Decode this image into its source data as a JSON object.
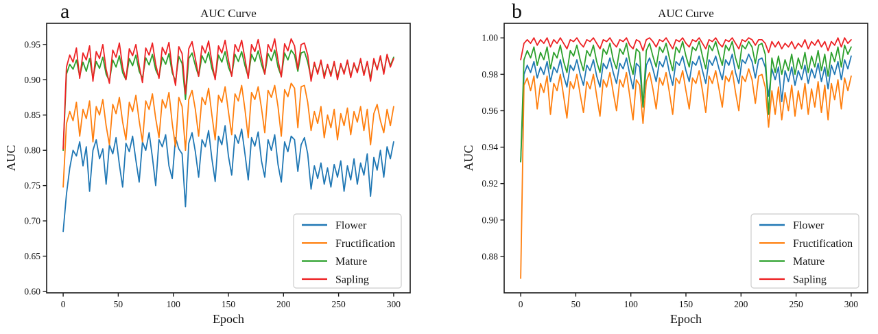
{
  "figure": {
    "background": "#ffffff",
    "panels": [
      {
        "panel_label": "a"
      },
      {
        "panel_label": "b"
      }
    ]
  },
  "chart_data": [
    {
      "type": "line",
      "title": "AUC Curve",
      "xlabel": "Epoch",
      "ylabel": "AUC",
      "xlim": [
        -15,
        315
      ],
      "ylim": [
        0.598,
        0.98
      ],
      "xticks": [
        0,
        50,
        100,
        150,
        200,
        250,
        300
      ],
      "yticks": [
        0.6,
        0.65,
        0.7,
        0.75,
        0.8,
        0.85,
        0.9,
        0.95
      ],
      "grid": false,
      "legend_position": "lower right",
      "x": [
        0,
        3,
        6,
        9,
        12,
        15,
        18,
        21,
        24,
        27,
        30,
        33,
        36,
        39,
        42,
        45,
        48,
        51,
        54,
        57,
        60,
        63,
        66,
        69,
        72,
        75,
        78,
        81,
        84,
        87,
        90,
        93,
        96,
        99,
        102,
        105,
        108,
        111,
        114,
        117,
        120,
        123,
        126,
        129,
        132,
        135,
        138,
        141,
        144,
        147,
        150,
        153,
        156,
        159,
        162,
        165,
        168,
        171,
        174,
        177,
        180,
        183,
        186,
        189,
        192,
        195,
        198,
        201,
        204,
        207,
        210,
        213,
        216,
        219,
        222,
        225,
        228,
        231,
        234,
        237,
        240,
        243,
        246,
        249,
        252,
        255,
        258,
        261,
        264,
        267,
        270,
        273,
        276,
        279,
        282,
        285,
        288,
        291,
        294,
        297,
        300
      ],
      "series": [
        {
          "name": "Flower",
          "color": "#1f77b4",
          "values": [
            0.685,
            0.738,
            0.775,
            0.8,
            0.792,
            0.812,
            0.778,
            0.805,
            0.742,
            0.8,
            0.815,
            0.788,
            0.802,
            0.752,
            0.808,
            0.795,
            0.818,
            0.78,
            0.748,
            0.81,
            0.798,
            0.82,
            0.786,
            0.755,
            0.812,
            0.8,
            0.825,
            0.79,
            0.75,
            0.815,
            0.805,
            0.822,
            0.778,
            0.76,
            0.818,
            0.802,
            0.795,
            0.72,
            0.81,
            0.825,
            0.798,
            0.762,
            0.815,
            0.805,
            0.828,
            0.788,
            0.756,
            0.82,
            0.808,
            0.835,
            0.792,
            0.765,
            0.822,
            0.81,
            0.83,
            0.795,
            0.758,
            0.818,
            0.806,
            0.826,
            0.785,
            0.762,
            0.815,
            0.8,
            0.822,
            0.78,
            0.755,
            0.812,
            0.798,
            0.82,
            0.815,
            0.77,
            0.808,
            0.818,
            0.795,
            0.745,
            0.778,
            0.76,
            0.782,
            0.752,
            0.775,
            0.748,
            0.78,
            0.762,
            0.785,
            0.742,
            0.778,
            0.758,
            0.788,
            0.752,
            0.782,
            0.765,
            0.795,
            0.735,
            0.79,
            0.772,
            0.8,
            0.762,
            0.805,
            0.788,
            0.812
          ]
        },
        {
          "name": "Fructification",
          "color": "#ff7f0e",
          "values": [
            0.748,
            0.838,
            0.855,
            0.842,
            0.868,
            0.82,
            0.858,
            0.845,
            0.87,
            0.812,
            0.862,
            0.85,
            0.872,
            0.835,
            0.808,
            0.865,
            0.852,
            0.875,
            0.84,
            0.815,
            0.868,
            0.855,
            0.878,
            0.842,
            0.812,
            0.87,
            0.858,
            0.88,
            0.845,
            0.818,
            0.872,
            0.86,
            0.882,
            0.838,
            0.805,
            0.875,
            0.862,
            0.8,
            0.872,
            0.885,
            0.858,
            0.82,
            0.875,
            0.865,
            0.888,
            0.85,
            0.815,
            0.878,
            0.868,
            0.89,
            0.855,
            0.822,
            0.88,
            0.87,
            0.892,
            0.858,
            0.818,
            0.882,
            0.872,
            0.89,
            0.86,
            0.825,
            0.885,
            0.875,
            0.892,
            0.862,
            0.82,
            0.886,
            0.876,
            0.895,
            0.888,
            0.832,
            0.89,
            0.892,
            0.868,
            0.828,
            0.855,
            0.838,
            0.862,
            0.818,
            0.85,
            0.832,
            0.858,
            0.815,
            0.852,
            0.835,
            0.86,
            0.822,
            0.855,
            0.84,
            0.862,
            0.828,
            0.858,
            0.808,
            0.852,
            0.865,
            0.842,
            0.825,
            0.858,
            0.835,
            0.862
          ]
        },
        {
          "name": "Mature",
          "color": "#2ca02c",
          "values": [
            0.8,
            0.908,
            0.922,
            0.915,
            0.928,
            0.905,
            0.925,
            0.912,
            0.93,
            0.902,
            0.926,
            0.916,
            0.932,
            0.908,
            0.898,
            0.928,
            0.918,
            0.934,
            0.91,
            0.9,
            0.93,
            0.92,
            0.935,
            0.912,
            0.902,
            0.931,
            0.921,
            0.936,
            0.914,
            0.904,
            0.932,
            0.922,
            0.937,
            0.91,
            0.898,
            0.933,
            0.923,
            0.872,
            0.93,
            0.938,
            0.92,
            0.905,
            0.934,
            0.924,
            0.939,
            0.916,
            0.902,
            0.935,
            0.925,
            0.94,
            0.918,
            0.906,
            0.936,
            0.926,
            0.94,
            0.92,
            0.904,
            0.936,
            0.926,
            0.941,
            0.922,
            0.908,
            0.937,
            0.927,
            0.942,
            0.918,
            0.905,
            0.938,
            0.928,
            0.942,
            0.935,
            0.912,
            0.938,
            0.94,
            0.925,
            0.902,
            0.922,
            0.91,
            0.926,
            0.906,
            0.92,
            0.908,
            0.924,
            0.904,
            0.921,
            0.91,
            0.926,
            0.905,
            0.922,
            0.912,
            0.928,
            0.908,
            0.925,
            0.902,
            0.928,
            0.915,
            0.932,
            0.91,
            0.935,
            0.92,
            0.932
          ]
        },
        {
          "name": "Sapling",
          "color": "#ed2224",
          "values": [
            0.802,
            0.918,
            0.935,
            0.925,
            0.945,
            0.902,
            0.938,
            0.928,
            0.948,
            0.898,
            0.94,
            0.93,
            0.95,
            0.915,
            0.895,
            0.942,
            0.932,
            0.952,
            0.918,
            0.9,
            0.944,
            0.934,
            0.95,
            0.92,
            0.896,
            0.945,
            0.935,
            0.952,
            0.922,
            0.902,
            0.946,
            0.936,
            0.953,
            0.915,
            0.892,
            0.947,
            0.937,
            0.88,
            0.944,
            0.954,
            0.93,
            0.905,
            0.948,
            0.938,
            0.955,
            0.925,
            0.9,
            0.948,
            0.938,
            0.956,
            0.928,
            0.905,
            0.95,
            0.94,
            0.956,
            0.93,
            0.902,
            0.95,
            0.94,
            0.957,
            0.932,
            0.908,
            0.95,
            0.94,
            0.958,
            0.928,
            0.904,
            0.951,
            0.941,
            0.958,
            0.948,
            0.915,
            0.95,
            0.952,
            0.935,
            0.898,
            0.925,
            0.908,
            0.928,
            0.902,
            0.922,
            0.905,
            0.926,
            0.9,
            0.923,
            0.908,
            0.928,
            0.903,
            0.924,
            0.91,
            0.93,
            0.906,
            0.926,
            0.898,
            0.93,
            0.914,
            0.934,
            0.908,
            0.936,
            0.918,
            0.93
          ]
        }
      ]
    },
    {
      "type": "line",
      "title": "AUC Curve",
      "xlabel": "Epoch",
      "ylabel": "AUC",
      "xlim": [
        -15,
        315
      ],
      "ylim": [
        0.86,
        1.008
      ],
      "xticks": [
        0,
        50,
        100,
        150,
        200,
        250,
        300
      ],
      "yticks": [
        0.88,
        0.9,
        0.92,
        0.94,
        0.96,
        0.98,
        1.0
      ],
      "grid": false,
      "legend_position": "lower right",
      "x": [
        0,
        3,
        6,
        9,
        12,
        15,
        18,
        21,
        24,
        27,
        30,
        33,
        36,
        39,
        42,
        45,
        48,
        51,
        54,
        57,
        60,
        63,
        66,
        69,
        72,
        75,
        78,
        81,
        84,
        87,
        90,
        93,
        96,
        99,
        102,
        105,
        108,
        111,
        114,
        117,
        120,
        123,
        126,
        129,
        132,
        135,
        138,
        141,
        144,
        147,
        150,
        153,
        156,
        159,
        162,
        165,
        168,
        171,
        174,
        177,
        180,
        183,
        186,
        189,
        192,
        195,
        198,
        201,
        204,
        207,
        210,
        213,
        216,
        219,
        222,
        225,
        228,
        231,
        234,
        237,
        240,
        243,
        246,
        249,
        252,
        255,
        258,
        261,
        264,
        267,
        270,
        273,
        276,
        279,
        282,
        285,
        288,
        291,
        294,
        297,
        300
      ],
      "series": [
        {
          "name": "Flower",
          "color": "#1f77b4",
          "values": [
            0.932,
            0.98,
            0.985,
            0.981,
            0.987,
            0.978,
            0.984,
            0.98,
            0.987,
            0.976,
            0.984,
            0.981,
            0.988,
            0.979,
            0.973,
            0.985,
            0.982,
            0.988,
            0.98,
            0.974,
            0.985,
            0.982,
            0.988,
            0.979,
            0.973,
            0.986,
            0.983,
            0.989,
            0.981,
            0.975,
            0.986,
            0.983,
            0.989,
            0.98,
            0.972,
            0.986,
            0.984,
            0.962,
            0.985,
            0.989,
            0.983,
            0.976,
            0.987,
            0.984,
            0.99,
            0.981,
            0.974,
            0.987,
            0.985,
            0.99,
            0.982,
            0.976,
            0.987,
            0.985,
            0.99,
            0.982,
            0.975,
            0.988,
            0.985,
            0.99,
            0.983,
            0.977,
            0.988,
            0.985,
            0.991,
            0.981,
            0.975,
            0.988,
            0.986,
            0.991,
            0.987,
            0.978,
            0.988,
            0.989,
            0.984,
            0.968,
            0.983,
            0.977,
            0.984,
            0.965,
            0.982,
            0.976,
            0.984,
            0.974,
            0.982,
            0.977,
            0.985,
            0.975,
            0.983,
            0.978,
            0.986,
            0.976,
            0.984,
            0.972,
            0.985,
            0.98,
            0.987,
            0.977,
            0.988,
            0.983,
            0.99
          ]
        },
        {
          "name": "Fructification",
          "color": "#ff7f0e",
          "values": [
            0.868,
            0.974,
            0.978,
            0.971,
            0.979,
            0.961,
            0.975,
            0.97,
            0.979,
            0.958,
            0.975,
            0.971,
            0.98,
            0.968,
            0.956,
            0.976,
            0.972,
            0.98,
            0.969,
            0.959,
            0.976,
            0.972,
            0.98,
            0.968,
            0.957,
            0.977,
            0.973,
            0.981,
            0.97,
            0.96,
            0.977,
            0.973,
            0.981,
            0.968,
            0.955,
            0.977,
            0.974,
            0.953,
            0.976,
            0.981,
            0.972,
            0.961,
            0.978,
            0.974,
            0.981,
            0.97,
            0.958,
            0.978,
            0.975,
            0.982,
            0.971,
            0.961,
            0.978,
            0.975,
            0.982,
            0.971,
            0.959,
            0.979,
            0.975,
            0.982,
            0.972,
            0.962,
            0.979,
            0.976,
            0.982,
            0.97,
            0.96,
            0.979,
            0.976,
            0.983,
            0.977,
            0.964,
            0.979,
            0.98,
            0.973,
            0.951,
            0.971,
            0.958,
            0.973,
            0.955,
            0.97,
            0.96,
            0.974,
            0.957,
            0.971,
            0.961,
            0.975,
            0.958,
            0.972,
            0.962,
            0.976,
            0.959,
            0.974,
            0.955,
            0.975,
            0.966,
            0.977,
            0.961,
            0.978,
            0.971,
            0.979
          ]
        },
        {
          "name": "Mature",
          "color": "#2ca02c",
          "values": [
            0.932,
            0.988,
            0.993,
            0.989,
            0.995,
            0.985,
            0.992,
            0.988,
            0.995,
            0.983,
            0.992,
            0.989,
            0.996,
            0.987,
            0.981,
            0.993,
            0.99,
            0.996,
            0.988,
            0.982,
            0.993,
            0.99,
            0.996,
            0.987,
            0.981,
            0.994,
            0.991,
            0.997,
            0.988,
            0.983,
            0.994,
            0.991,
            0.997,
            0.987,
            0.98,
            0.994,
            0.992,
            0.962,
            0.993,
            0.997,
            0.99,
            0.984,
            0.995,
            0.992,
            0.997,
            0.989,
            0.982,
            0.995,
            0.992,
            0.998,
            0.99,
            0.984,
            0.995,
            0.993,
            0.998,
            0.99,
            0.983,
            0.996,
            0.993,
            0.998,
            0.991,
            0.985,
            0.996,
            0.993,
            0.998,
            0.989,
            0.983,
            0.996,
            0.994,
            0.998,
            0.995,
            0.986,
            0.996,
            0.997,
            0.991,
            0.958,
            0.989,
            0.981,
            0.99,
            0.98,
            0.988,
            0.982,
            0.991,
            0.98,
            0.989,
            0.983,
            0.992,
            0.981,
            0.99,
            0.984,
            0.993,
            0.982,
            0.991,
            0.979,
            0.992,
            0.987,
            0.995,
            0.984,
            0.996,
            0.991,
            0.995
          ]
        },
        {
          "name": "Sapling",
          "color": "#ed2224",
          "values": [
            0.988,
            0.997,
            0.999,
            0.997,
            1.0,
            0.996,
            0.999,
            0.997,
            1.0,
            0.995,
            0.999,
            0.997,
            1.0,
            0.997,
            0.994,
            0.999,
            0.998,
            1.0,
            0.997,
            0.995,
            0.999,
            0.998,
            1.0,
            0.997,
            0.994,
            0.999,
            0.998,
            1.0,
            0.997,
            0.995,
            0.999,
            0.998,
            1.0,
            0.996,
            0.994,
            0.999,
            0.998,
            0.993,
            0.999,
            1.0,
            0.998,
            0.995,
            0.999,
            0.998,
            1.0,
            0.997,
            0.994,
            0.999,
            0.998,
            1.0,
            0.997,
            0.995,
            0.999,
            0.998,
            1.0,
            0.997,
            0.994,
            0.999,
            0.998,
            1.0,
            0.997,
            0.995,
            0.999,
            0.998,
            1.0,
            0.997,
            0.994,
            0.999,
            0.998,
            1.0,
            0.999,
            0.996,
            0.999,
            0.999,
            0.997,
            0.992,
            0.998,
            0.995,
            0.998,
            0.994,
            0.997,
            0.995,
            0.998,
            0.994,
            0.997,
            0.995,
            0.999,
            0.994,
            0.998,
            0.996,
            0.999,
            0.995,
            0.998,
            0.993,
            0.998,
            0.996,
            1.0,
            0.995,
            1.0,
            0.997,
            0.999
          ]
        }
      ]
    }
  ]
}
